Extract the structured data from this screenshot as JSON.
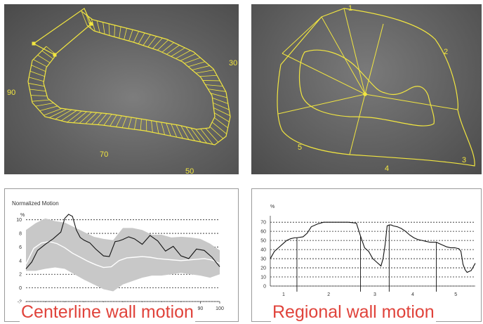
{
  "panels": {
    "centerline_image": {
      "labels": [
        "90",
        "70",
        "30",
        "50"
      ]
    },
    "regional_image": {
      "labels": [
        "1",
        "2",
        "3",
        "4",
        "5"
      ]
    }
  },
  "captions": {
    "left": "Centerline wall motion",
    "right": "Regional wall motion"
  },
  "colors": {
    "overlay": "#f2e640",
    "caption": "#e0433b",
    "band": "#c8c8c8"
  },
  "chart_data": [
    {
      "type": "line",
      "title": "Normalized Motion",
      "ylabel": "%",
      "x_ticks": [
        "0",
        "10",
        "20",
        "30",
        "40",
        "50",
        "60",
        "70",
        "80",
        "90",
        "100"
      ],
      "y_ticks": [
        "-2",
        "0",
        "2",
        "4",
        "6",
        "8",
        "10"
      ],
      "xlim": [
        0,
        100
      ],
      "ylim": [
        -2,
        11
      ],
      "series": [
        {
          "x": [
            0,
            3,
            6,
            10,
            14,
            18,
            20,
            22,
            24,
            26,
            28,
            30,
            33,
            36,
            40,
            43,
            46,
            48,
            50,
            53,
            56,
            60,
            64,
            68,
            72,
            76,
            80,
            84,
            88,
            92,
            96,
            100
          ],
          "y": [
            2.8,
            3.8,
            5.5,
            6.4,
            7.2,
            8.2,
            10.2,
            10.8,
            10.5,
            8.5,
            7.4,
            7.0,
            6.6,
            5.7,
            4.7,
            4.6,
            6.8,
            6.9,
            7.1,
            7.5,
            7.2,
            6.4,
            7.7,
            6.9,
            5.4,
            6.1,
            4.7,
            4.3,
            5.7,
            5.5,
            4.5,
            3.1
          ]
        },
        {
          "x": [
            0,
            4,
            8,
            12,
            16,
            20,
            24,
            28,
            32,
            36,
            40,
            44,
            48,
            52,
            56,
            60,
            64,
            68,
            72,
            76,
            80,
            84,
            88,
            92,
            96,
            100
          ],
          "y": [
            3.5,
            5.8,
            6.6,
            6.8,
            6.5,
            5.9,
            5.1,
            4.5,
            3.9,
            3.4,
            3.0,
            3.1,
            4.0,
            4.4,
            4.5,
            4.6,
            4.5,
            4.3,
            4.2,
            4.1,
            4.0,
            4.1,
            4.2,
            4.3,
            4.1,
            3.6
          ]
        },
        {
          "x": [
            0,
            5,
            10,
            15,
            20,
            25,
            30,
            35,
            40,
            45,
            50,
            55,
            60,
            65,
            70,
            75,
            80,
            85,
            90,
            95,
            100
          ],
          "upper": [
            8.5,
            9.5,
            10.2,
            9.8,
            9.6,
            8.9,
            8.2,
            7.5,
            7.2,
            7.0,
            8.8,
            8.8,
            8.5,
            7.8,
            7.8,
            7.4,
            7.5,
            7.4,
            7.2,
            6.5,
            5.5
          ],
          "lower": [
            2.5,
            2.5,
            2.8,
            3.0,
            2.8,
            2.0,
            1.2,
            0.5,
            -0.2,
            -0.5,
            0.5,
            1.0,
            1.5,
            1.8,
            1.8,
            2.0,
            2.2,
            2.0,
            1.8,
            1.5,
            2.0
          ]
        }
      ]
    },
    {
      "type": "line",
      "ylabel": "%",
      "y_ticks": [
        "0",
        "10",
        "20",
        "30",
        "40",
        "50",
        "60",
        "70"
      ],
      "ylim": [
        0,
        74
      ],
      "xlim": [
        0,
        100
      ],
      "categories": [
        "1",
        "2",
        "3",
        "4",
        "5"
      ],
      "segment_boundaries": [
        13,
        44,
        58,
        81
      ],
      "series": [
        {
          "x": [
            0,
            2,
            4,
            6,
            8,
            10,
            12,
            13,
            16,
            18,
            20,
            23,
            26,
            30,
            34,
            38,
            42,
            44,
            46,
            48,
            50,
            52,
            54,
            55,
            56,
            57,
            58,
            59,
            60,
            62,
            64,
            66,
            68,
            70,
            72,
            74,
            76,
            78,
            81,
            84,
            86,
            88,
            90,
            92,
            93,
            94,
            95,
            96,
            98,
            100
          ],
          "y": [
            30,
            38,
            42,
            46,
            50,
            52,
            53,
            53,
            54,
            58,
            65,
            68,
            70,
            70,
            70,
            70,
            69,
            55,
            42,
            38,
            30,
            26,
            22,
            30,
            45,
            66,
            67,
            67,
            66,
            65,
            63,
            60,
            56,
            53,
            51,
            50,
            49,
            48,
            48,
            45,
            43,
            42,
            42,
            41,
            38,
            24,
            18,
            15,
            17,
            25
          ]
        }
      ]
    }
  ]
}
